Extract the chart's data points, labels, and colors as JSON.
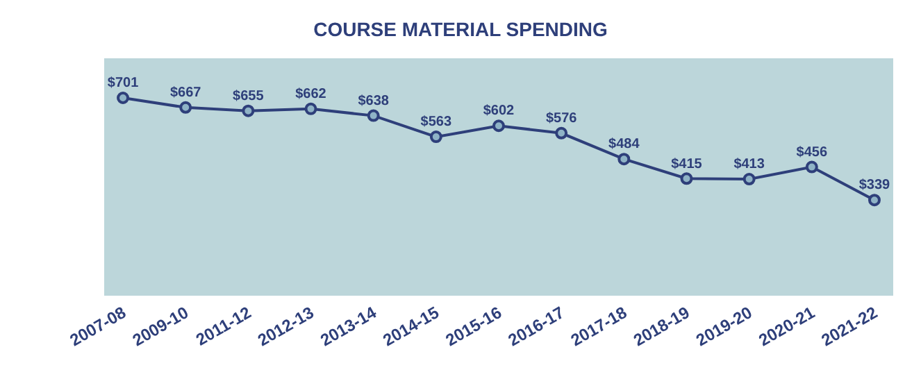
{
  "chart_data": {
    "type": "line",
    "title": "COURSE MATERIAL SPENDING",
    "categories": [
      "2007-08",
      "2009-10",
      "2011-12",
      "2012-13",
      "2013-14",
      "2014-15",
      "2015-16",
      "2016-17",
      "2017-18",
      "2018-19",
      "2019-20",
      "2020-21",
      "2021-22"
    ],
    "values": [
      701,
      667,
      655,
      662,
      638,
      563,
      602,
      576,
      484,
      415,
      413,
      456,
      339
    ],
    "value_labels": [
      "$701",
      "$667",
      "$655",
      "$662",
      "$638",
      "$563",
      "$602",
      "$576",
      "$484",
      "$415",
      "$413",
      "$456",
      "$339"
    ],
    "color": "#2e3f7a",
    "marker": "circle",
    "line_style": "solid"
  }
}
